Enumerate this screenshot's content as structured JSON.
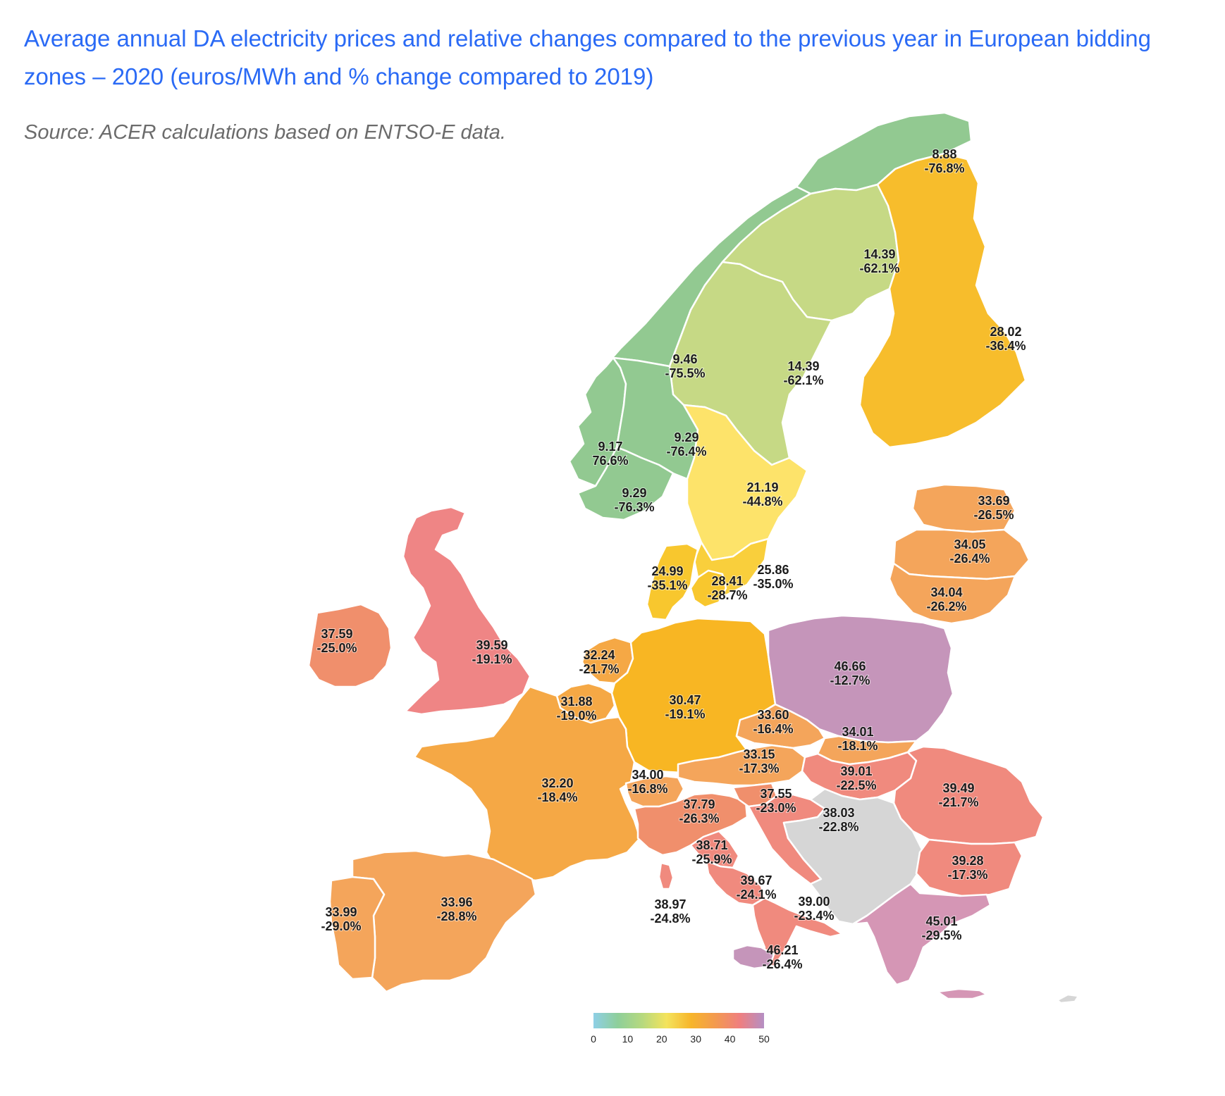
{
  "title": "Average annual DA electricity prices and relative changes compared to the previous year in European bidding zones – 2020 (euros/MWh and % change compared to 2019)",
  "source": "Source: ACER calculations based on ENTSO-E data.",
  "legend": {
    "ticks": [
      "0",
      "10",
      "20",
      "30",
      "40",
      "50"
    ],
    "min": 0,
    "max": 50,
    "stops": [
      "#8ecfe6",
      "#8ecf9a",
      "#b6d97e",
      "#f4e35c",
      "#f7b52a",
      "#f39a4f",
      "#ef7f7f",
      "#b58fc4"
    ]
  },
  "zones": [
    {
      "id": "NO4",
      "price": "8.88",
      "change": "-76.8%",
      "color": "#92c991"
    },
    {
      "id": "SE1",
      "price": "14.39",
      "change": "-62.1%",
      "color": "#c6d985"
    },
    {
      "id": "SE2",
      "price": "14.39",
      "change": "-62.1%",
      "color": "#c6d985"
    },
    {
      "id": "FI",
      "price": "28.02",
      "change": "-36.4%",
      "color": "#f7bd2c"
    },
    {
      "id": "NO3",
      "price": "9.46",
      "change": "-75.5%",
      "color": "#92c991"
    },
    {
      "id": "NO5",
      "price": "9.17",
      "change": "76.6%",
      "color": "#92c991"
    },
    {
      "id": "NO1",
      "price": "9.29",
      "change": "-76.4%",
      "color": "#92c991"
    },
    {
      "id": "NO2",
      "price": "9.29",
      "change": "-76.3%",
      "color": "#92c991"
    },
    {
      "id": "SE3",
      "price": "21.19",
      "change": "-44.8%",
      "color": "#fde36a"
    },
    {
      "id": "EE",
      "price": "33.69",
      "change": "-26.5%",
      "color": "#f4a55b"
    },
    {
      "id": "LV",
      "price": "34.05",
      "change": "-26.4%",
      "color": "#f4a55b"
    },
    {
      "id": "LT",
      "price": "34.04",
      "change": "-26.2%",
      "color": "#f4a55b"
    },
    {
      "id": "DK1",
      "price": "24.99",
      "change": "-35.1%",
      "color": "#f8c72e"
    },
    {
      "id": "DK2",
      "price": "28.41",
      "change": "-28.7%",
      "color": "#f8c72e"
    },
    {
      "id": "SE4",
      "price": "25.86",
      "change": "-35.0%",
      "color": "#f9cf3c"
    },
    {
      "id": "IE",
      "price": "37.59",
      "change": "-25.0%",
      "color": "#f08f6c"
    },
    {
      "id": "GB",
      "price": "39.59",
      "change": "-19.1%",
      "color": "#ef8585"
    },
    {
      "id": "NL",
      "price": "32.24",
      "change": "-21.7%",
      "color": "#f5a845"
    },
    {
      "id": "BE",
      "price": "31.88",
      "change": "-19.0%",
      "color": "#f5a845"
    },
    {
      "id": "DE-LU",
      "price": "30.47",
      "change": "-19.1%",
      "color": "#f8b623"
    },
    {
      "id": "PL",
      "price": "46.66",
      "change": "-12.7%",
      "color": "#c595ba"
    },
    {
      "id": "CZ",
      "price": "33.60",
      "change": "-16.4%",
      "color": "#f4a55b"
    },
    {
      "id": "SK",
      "price": "34.01",
      "change": "-18.1%",
      "color": "#f4a55b"
    },
    {
      "id": "AT",
      "price": "33.15",
      "change": "-17.3%",
      "color": "#f4a55b"
    },
    {
      "id": "HU",
      "price": "39.01",
      "change": "-22.5%",
      "color": "#f08a7e"
    },
    {
      "id": "RO",
      "price": "39.49",
      "change": "-21.7%",
      "color": "#f08a7e"
    },
    {
      "id": "FR",
      "price": "32.20",
      "change": "-18.4%",
      "color": "#f5a845"
    },
    {
      "id": "CH",
      "price": "34.00",
      "change": "-16.8%",
      "color": "#f4a55b"
    },
    {
      "id": "IT-North",
      "price": "37.79",
      "change": "-26.3%",
      "color": "#f08f6c"
    },
    {
      "id": "SI",
      "price": "37.55",
      "change": "-23.0%",
      "color": "#f08f6c"
    },
    {
      "id": "HR",
      "price": "38.03",
      "change": "-22.8%",
      "color": "#f08a7e"
    },
    {
      "id": "BG",
      "price": "39.28",
      "change": "-17.3%",
      "color": "#f08a7e"
    },
    {
      "id": "IT-CNorth",
      "price": "38.71",
      "change": "-25.9%",
      "color": "#f08a7e"
    },
    {
      "id": "IT-CSouth",
      "price": "39.67",
      "change": "-24.1%",
      "color": "#f08a7e"
    },
    {
      "id": "IT-South",
      "price": "39.00",
      "change": "-23.4%",
      "color": "#f08a7e"
    },
    {
      "id": "IT-Sardinia",
      "price": "38.97",
      "change": "-24.8%",
      "color": "#f08a7e"
    },
    {
      "id": "IT-Sicily",
      "price": "46.21",
      "change": "-26.4%",
      "color": "#c595ba"
    },
    {
      "id": "GR",
      "price": "45.01",
      "change": "-29.5%",
      "color": "#d596b5"
    },
    {
      "id": "ES",
      "price": "33.96",
      "change": "-28.8%",
      "color": "#f4a55b"
    },
    {
      "id": "PT",
      "price": "33.99",
      "change": "-29.0%",
      "color": "#f4a55b"
    }
  ],
  "no_data_color": "#d6d6d6"
}
